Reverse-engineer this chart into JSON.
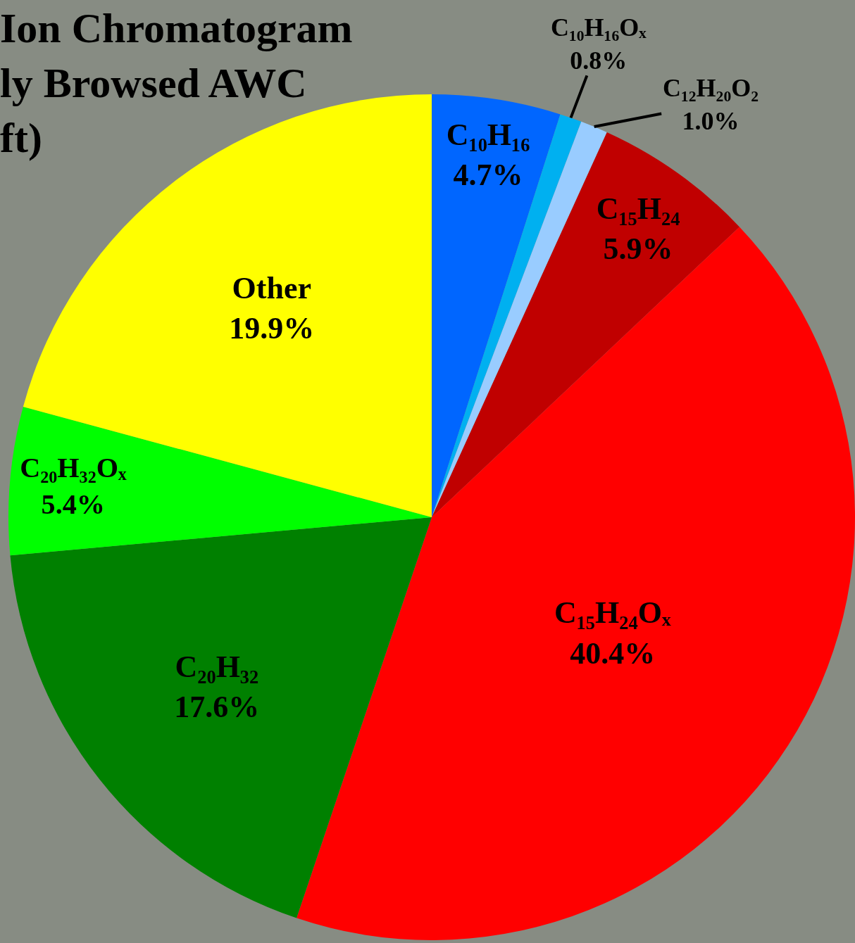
{
  "chart_data": {
    "type": "pie",
    "title": "Ion Chromatogram\nly Browsed AWC\nft)",
    "categories": [
      "C₁₀H₁₆",
      "C₁₀H₁₆Oₓ",
      "C₁₂H₂₀O₂",
      "C₁₅H₂₄",
      "C₁₅H₂₄Oₓ",
      "C₂₀H₃₂",
      "C₂₀H₃₂Oₓ",
      "Other"
    ],
    "values": [
      4.7,
      0.8,
      1.0,
      5.9,
      40.4,
      17.6,
      5.4,
      19.9
    ],
    "value_labels": [
      "4.7%",
      "0.8%",
      "1.0%",
      "5.9%",
      "40.4%",
      "17.6%",
      "5.4%",
      "19.9%"
    ],
    "colors": [
      "#0066ff",
      "#00b0f0",
      "#99ccff",
      "#c00000",
      "#ff0000",
      "#008000",
      "#00ff00",
      "#ffff00"
    ]
  }
}
